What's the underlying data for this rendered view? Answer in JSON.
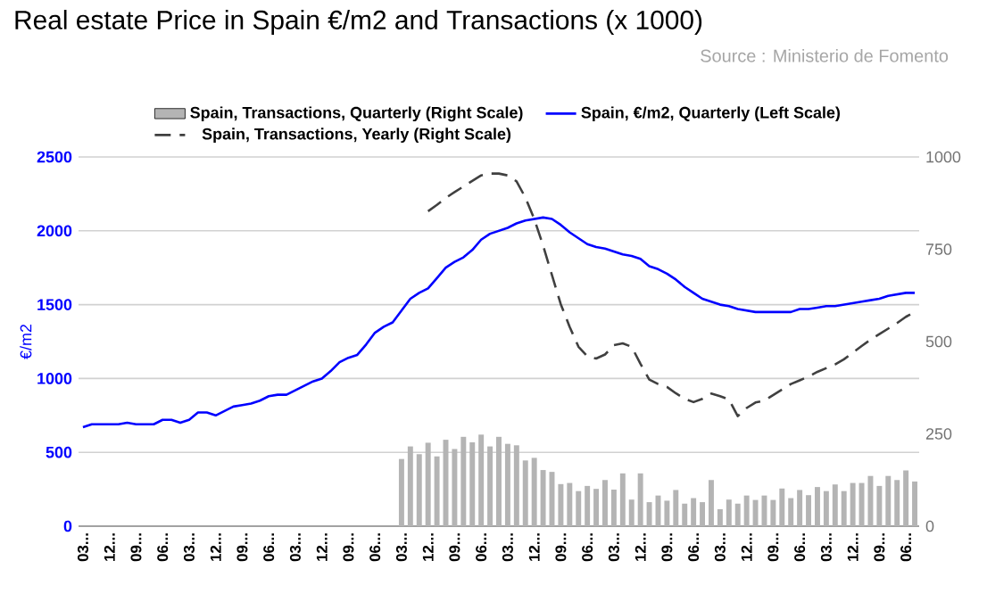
{
  "chart_data": {
    "type": "line",
    "title": "Real estate Price in Spain €/m2 and Transactions (x 1000)",
    "annotations": [
      "Source : Ministerio de Fomento"
    ],
    "ylabel": "€/m2",
    "categories": [
      "03...",
      null,
      null,
      "12...",
      null,
      null,
      "09...",
      null,
      null,
      "06...",
      null,
      null,
      "03...",
      null,
      null,
      "12...",
      null,
      null,
      "09...",
      null,
      null,
      "06...",
      null,
      null,
      "03...",
      null,
      null,
      "12...",
      null,
      null,
      "09...",
      null,
      null,
      "06...",
      null,
      null,
      "03...",
      null,
      null,
      "12...",
      null,
      null,
      "09...",
      null,
      null,
      "06...",
      null,
      null,
      "03...",
      null,
      null,
      "12...",
      null,
      null,
      "09...",
      null,
      null,
      "06...",
      null,
      null,
      "03...",
      null,
      null,
      "12...",
      null,
      null,
      "09...",
      null,
      null,
      "06...",
      null,
      null,
      "03...",
      null,
      null,
      "12...",
      null,
      null,
      "09...",
      null,
      null,
      "06...",
      null,
      null,
      "03...",
      null,
      null,
      "12...",
      null,
      null,
      "09...",
      null,
      null,
      "06...",
      null
    ],
    "series": [
      {
        "name": "Spain, Transactions, Quarterly (Right Scale)",
        "type": "bar",
        "axis": "y2",
        "color": "#b4b4b4",
        "values": [
          null,
          null,
          null,
          null,
          null,
          null,
          null,
          null,
          null,
          null,
          null,
          null,
          null,
          null,
          null,
          null,
          null,
          null,
          null,
          null,
          null,
          null,
          null,
          null,
          null,
          null,
          null,
          null,
          null,
          null,
          null,
          null,
          null,
          null,
          null,
          null,
          182,
          216,
          195,
          226,
          189,
          234,
          209,
          242,
          227,
          248,
          216,
          242,
          223,
          219,
          178,
          185,
          152,
          147,
          114,
          117,
          95,
          109,
          101,
          125,
          99,
          143,
          72,
          143,
          65,
          83,
          69,
          98,
          61,
          76,
          65,
          125,
          46,
          72,
          61,
          83,
          71,
          83,
          71,
          102,
          76,
          98,
          84,
          106,
          95,
          113,
          95,
          117,
          117,
          136,
          109,
          136,
          125,
          151,
          121
        ]
      },
      {
        "name": "Spain, €/m2, Quarterly (Left Scale)",
        "color": "#0000ff",
        "values": [
          670,
          690,
          690,
          690,
          690,
          700,
          690,
          690,
          690,
          720,
          720,
          700,
          720,
          770,
          770,
          750,
          780,
          810,
          820,
          830,
          850,
          880,
          890,
          890,
          920,
          950,
          980,
          1000,
          1050,
          1110,
          1140,
          1160,
          1230,
          1310,
          1350,
          1380,
          1460,
          1540,
          1580,
          1610,
          1680,
          1750,
          1790,
          1820,
          1870,
          1940,
          1980,
          2000,
          2020,
          2050,
          2070,
          2080,
          2090,
          2080,
          2040,
          1990,
          1950,
          1910,
          1890,
          1880,
          1860,
          1840,
          1830,
          1810,
          1760,
          1740,
          1710,
          1670,
          1620,
          1580,
          1540,
          1520,
          1500,
          1490,
          1470,
          1460,
          1450,
          1450,
          1450,
          1450,
          1450,
          1470,
          1470,
          1480,
          1490,
          1490,
          1500,
          1510,
          1520,
          1530,
          1540,
          1560,
          1570,
          1580,
          1580
        ]
      },
      {
        "name": "Spain, Transactions, Yearly (Right Scale)",
        "type": "line",
        "axis": "y2",
        "line_style": "dashed",
        "color": "#404040",
        "values": [
          null,
          null,
          null,
          null,
          null,
          null,
          null,
          null,
          null,
          null,
          null,
          null,
          null,
          null,
          null,
          null,
          null,
          null,
          null,
          null,
          null,
          null,
          null,
          null,
          null,
          null,
          null,
          null,
          null,
          null,
          null,
          null,
          null,
          null,
          null,
          null,
          null,
          null,
          null,
          853,
          870,
          889,
          905,
          920,
          935,
          950,
          955,
          955,
          950,
          934,
          890,
          832,
          760,
          680,
          601,
          540,
          486,
          460,
          454,
          465,
          490,
          495,
          486,
          440,
          397,
          385,
          377,
          360,
          345,
          336,
          345,
          359,
          352,
          343,
          298,
          320,
          335,
          340,
          355,
          370,
          385,
          395,
          405,
          418,
          428,
          438,
          452,
          470,
          488,
          505,
          520,
          535,
          550,
          567,
          580
        ]
      }
    ],
    "ylim": [
      0,
      2500
    ],
    "yticks": [
      0,
      500,
      1000,
      1500,
      2000,
      2500
    ],
    "y2lim": [
      0,
      1000
    ],
    "y2ticks": [
      0,
      250,
      500,
      750,
      1000
    ],
    "grid": "y",
    "legend": "top",
    "marker": "none"
  }
}
